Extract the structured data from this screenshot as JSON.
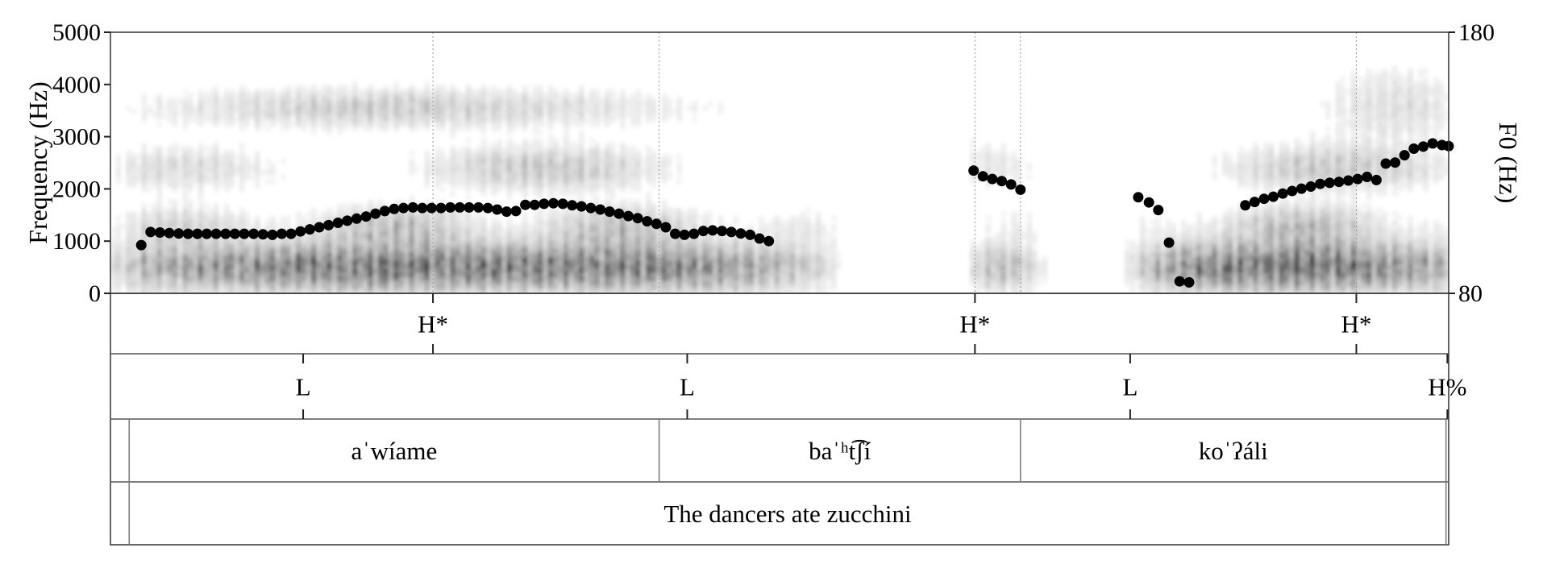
{
  "chart_data": {
    "type": "scatter",
    "spectrogram": {
      "duration_s": 1.0,
      "yaxis_left": {
        "label": "Frequency (Hz)",
        "ylim": [
          0,
          5000
        ],
        "ticks": [
          "5000",
          "4000",
          "3000",
          "2000",
          "1000",
          "0"
        ],
        "tick_values": [
          5000,
          4000,
          3000,
          2000,
          1000,
          0
        ]
      },
      "yaxis_right": {
        "label": "F0 (Hz)",
        "ylim": [
          80,
          180
        ],
        "ticks": [
          "180",
          "80"
        ],
        "tick_values": [
          180,
          80
        ]
      },
      "grayscale": true
    },
    "pitch_track_hz": [
      [
        0.023,
        98.5
      ],
      [
        0.03,
        103.5
      ],
      [
        0.037,
        103.3
      ],
      [
        0.044,
        103.1
      ],
      [
        0.051,
        102.9
      ],
      [
        0.058,
        102.8
      ],
      [
        0.065,
        102.8
      ],
      [
        0.072,
        102.8
      ],
      [
        0.079,
        102.8
      ],
      [
        0.086,
        102.8
      ],
      [
        0.093,
        102.8
      ],
      [
        0.1,
        102.8
      ],
      [
        0.107,
        102.8
      ],
      [
        0.114,
        102.6
      ],
      [
        0.121,
        102.4
      ],
      [
        0.128,
        102.8
      ],
      [
        0.135,
        102.8
      ],
      [
        0.142,
        103.7
      ],
      [
        0.149,
        104.5
      ],
      [
        0.156,
        105.3
      ],
      [
        0.163,
        106.1
      ],
      [
        0.17,
        107.0
      ],
      [
        0.177,
        107.8
      ],
      [
        0.184,
        108.6
      ],
      [
        0.191,
        109.4
      ],
      [
        0.198,
        110.5
      ],
      [
        0.205,
        111.5
      ],
      [
        0.212,
        112.3
      ],
      [
        0.219,
        112.7
      ],
      [
        0.226,
        112.9
      ],
      [
        0.233,
        112.7
      ],
      [
        0.24,
        112.7
      ],
      [
        0.247,
        112.7
      ],
      [
        0.254,
        112.9
      ],
      [
        0.261,
        112.9
      ],
      [
        0.268,
        112.9
      ],
      [
        0.275,
        112.9
      ],
      [
        0.282,
        112.7
      ],
      [
        0.289,
        112.1
      ],
      [
        0.296,
        111.3
      ],
      [
        0.303,
        111.5
      ],
      [
        0.31,
        113.9
      ],
      [
        0.317,
        113.9
      ],
      [
        0.324,
        114.3
      ],
      [
        0.331,
        114.5
      ],
      [
        0.338,
        114.3
      ],
      [
        0.345,
        113.7
      ],
      [
        0.352,
        113.3
      ],
      [
        0.359,
        112.7
      ],
      [
        0.366,
        112.1
      ],
      [
        0.373,
        111.3
      ],
      [
        0.38,
        110.5
      ],
      [
        0.387,
        109.6
      ],
      [
        0.394,
        108.8
      ],
      [
        0.401,
        107.6
      ],
      [
        0.408,
        106.6
      ],
      [
        0.415,
        105.3
      ],
      [
        0.422,
        102.8
      ],
      [
        0.429,
        102.4
      ],
      [
        0.436,
        102.8
      ],
      [
        0.443,
        103.9
      ],
      [
        0.45,
        104.1
      ],
      [
        0.457,
        103.9
      ],
      [
        0.464,
        103.5
      ],
      [
        0.471,
        102.9
      ],
      [
        0.478,
        102.4
      ],
      [
        0.485,
        101.0
      ],
      [
        0.492,
        100.0
      ],
      [
        0.645,
        127.0
      ],
      [
        0.652,
        124.8
      ],
      [
        0.659,
        123.8
      ],
      [
        0.666,
        123.0
      ],
      [
        0.673,
        121.7
      ],
      [
        0.68,
        119.7
      ],
      [
        0.768,
        116.8
      ],
      [
        0.776,
        114.8
      ],
      [
        0.783,
        111.9
      ],
      [
        0.791,
        99.4
      ],
      [
        0.799,
        84.6
      ],
      [
        0.806,
        84.2
      ],
      [
        0.848,
        113.7
      ],
      [
        0.855,
        115.0
      ],
      [
        0.862,
        116.2
      ],
      [
        0.869,
        117.0
      ],
      [
        0.876,
        118.2
      ],
      [
        0.883,
        119.2
      ],
      [
        0.89,
        120.1
      ],
      [
        0.897,
        120.9
      ],
      [
        0.904,
        121.9
      ],
      [
        0.911,
        122.3
      ],
      [
        0.918,
        122.7
      ],
      [
        0.925,
        123.2
      ],
      [
        0.932,
        123.8
      ],
      [
        0.939,
        124.6
      ],
      [
        0.946,
        123.4
      ],
      [
        0.953,
        129.7
      ],
      [
        0.96,
        130.1
      ],
      [
        0.967,
        132.9
      ],
      [
        0.974,
        135.4
      ],
      [
        0.981,
        136.2
      ],
      [
        0.988,
        137.4
      ],
      [
        0.995,
        136.8
      ],
      [
        1.0,
        136.4
      ]
    ],
    "tiers": [
      {
        "name": "tones-accents",
        "points": [
          {
            "t": 0.241,
            "label": "H*"
          },
          {
            "t": 0.646,
            "label": "H*"
          },
          {
            "t": 0.931,
            "label": "H*"
          }
        ]
      },
      {
        "name": "tones-boundary",
        "points": [
          {
            "t": 0.144,
            "label": "L"
          },
          {
            "t": 0.431,
            "label": "L"
          },
          {
            "t": 0.762,
            "label": "L"
          },
          {
            "t": 0.999,
            "label": "H%"
          }
        ]
      },
      {
        "name": "words",
        "boundaries": [
          0.014,
          0.41,
          0.68,
          0.998
        ],
        "intervals": [
          {
            "start": 0.014,
            "end": 0.41,
            "label": "aˈwíame"
          },
          {
            "start": 0.41,
            "end": 0.68,
            "label": "baˈʰt͡ʃí"
          },
          {
            "start": 0.68,
            "end": 0.998,
            "label": "koˈʔáli"
          }
        ]
      },
      {
        "name": "translation",
        "boundaries": [
          0.014,
          0.998
        ],
        "intervals": [
          {
            "start": 0.014,
            "end": 0.998,
            "label": "The dancers ate zucchini"
          }
        ]
      }
    ]
  }
}
